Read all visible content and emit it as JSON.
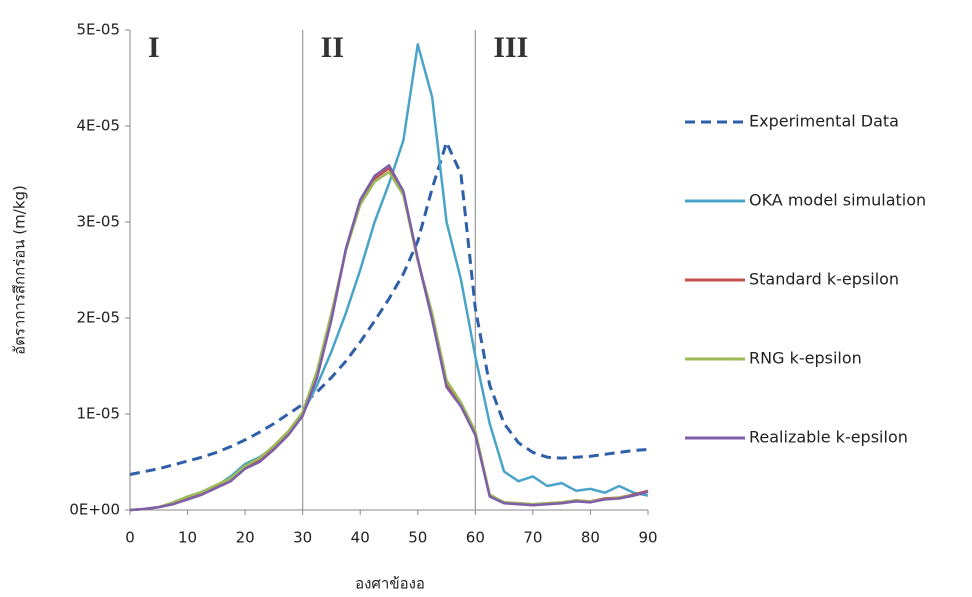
{
  "chart_data": {
    "type": "line",
    "x_label": "องศาข้องอ",
    "y_label": "อัตราการสึกกร่อน (m/kg)",
    "x": [
      0,
      2.5,
      5,
      7.5,
      10,
      12.5,
      15,
      17.5,
      20,
      22.5,
      25,
      27.5,
      30,
      32.5,
      35,
      37.5,
      40,
      42.5,
      45,
      47.5,
      50,
      52.5,
      55,
      57.5,
      60,
      62.5,
      65,
      67.5,
      70,
      72.5,
      75,
      77.5,
      80,
      82.5,
      85,
      87.5,
      90
    ],
    "series": [
      {
        "name": "Experimental Data",
        "color": "#2e5fa8",
        "dashed": true,
        "values": [
          3.7e-06,
          4e-06,
          4.3e-06,
          4.7e-06,
          5.1e-06,
          5.5e-06,
          6e-06,
          6.6e-06,
          7.3e-06,
          8.1e-06,
          9e-06,
          1e-05,
          1.1e-05,
          1.23e-05,
          1.38e-05,
          1.55e-05,
          1.75e-05,
          1.97e-05,
          2.2e-05,
          2.46e-05,
          2.8e-05,
          3.35e-05,
          3.83e-05,
          3.5e-05,
          2.1e-05,
          1.3e-05,
          9e-06,
          7e-06,
          6e-06,
          5.5e-06,
          5.4e-06,
          5.5e-06,
          5.6e-06,
          5.8e-06,
          6e-06,
          6.2e-06,
          6.3e-06
        ]
      },
      {
        "name": "OKA model simulation",
        "color": "#4aa3c8",
        "dashed": false,
        "values": [
          0,
          1e-07,
          3e-07,
          7e-07,
          1.2e-06,
          1.7e-06,
          2.5e-06,
          3.5e-06,
          4.8e-06,
          5.5e-06,
          6.5e-06,
          8e-06,
          1e-05,
          1.3e-05,
          1.65e-05,
          2.05e-05,
          2.5e-05,
          3e-05,
          3.4e-05,
          3.85e-05,
          4.85e-05,
          4.3e-05,
          3e-05,
          2.4e-05,
          1.6e-05,
          9e-06,
          4e-06,
          3e-06,
          3.5e-06,
          2.5e-06,
          2.8e-06,
          2e-06,
          2.2e-06,
          1.8e-06,
          2.5e-06,
          1.8e-06,
          1.5e-06
        ]
      },
      {
        "name": "Standard k-epsilon",
        "color": "#c0504d",
        "dashed": false,
        "values": [
          0,
          1e-07,
          3e-07,
          7e-07,
          1.3e-06,
          1.8e-06,
          2.5e-06,
          3.2e-06,
          4.5e-06,
          5.2e-06,
          6.5e-06,
          8e-06,
          1e-05,
          1.4e-05,
          2e-05,
          2.7e-05,
          3.2e-05,
          3.45e-05,
          3.56e-05,
          3.3e-05,
          2.6e-05,
          2e-05,
          1.3e-05,
          1.1e-05,
          8e-06,
          1.5e-06,
          8e-07,
          7e-07,
          6e-07,
          7e-07,
          8e-07,
          1e-06,
          9e-07,
          1.2e-06,
          1.3e-06,
          1.6e-06,
          2e-06
        ]
      },
      {
        "name": "RNG k-epsilon",
        "color": "#9bbb59",
        "dashed": false,
        "values": [
          0,
          1e-07,
          3e-07,
          8e-07,
          1.4e-06,
          1.9e-06,
          2.6e-06,
          3.3e-06,
          4.6e-06,
          5.4e-06,
          6.7e-06,
          8.2e-06,
          1.02e-05,
          1.45e-05,
          2.05e-05,
          2.7e-05,
          3.18e-05,
          3.42e-05,
          3.52e-05,
          3.28e-05,
          2.6e-05,
          2.05e-05,
          1.35e-05,
          1.12e-05,
          8.2e-06,
          1.6e-06,
          8e-07,
          7e-07,
          6e-07,
          7e-07,
          8e-07,
          1e-06,
          9e-07,
          1.1e-06,
          1.3e-06,
          1.5e-06,
          1.9e-06
        ]
      },
      {
        "name": "Realizable k-epsilon",
        "color": "#7f5ea8",
        "dashed": false,
        "values": [
          0,
          1e-07,
          3e-07,
          6e-07,
          1.1e-06,
          1.6e-06,
          2.3e-06,
          3e-06,
          4.3e-06,
          5e-06,
          6.3e-06,
          7.8e-06,
          9.8e-06,
          1.38e-05,
          1.98e-05,
          2.72e-05,
          3.23e-05,
          3.48e-05,
          3.59e-05,
          3.32e-05,
          2.62e-05,
          1.98e-05,
          1.28e-05,
          1.08e-05,
          7.8e-06,
          1.4e-06,
          7e-07,
          6e-07,
          5e-07,
          6e-07,
          7e-07,
          9e-07,
          8e-07,
          1.1e-06,
          1.2e-06,
          1.5e-06,
          1.9e-06
        ]
      }
    ],
    "xlim": [
      0,
      90
    ],
    "xticks": [
      0,
      10,
      20,
      30,
      40,
      50,
      60,
      70,
      80,
      90
    ],
    "ylim": [
      0,
      5e-05
    ],
    "yticks": [
      {
        "value": 0,
        "label": "0E+00"
      },
      {
        "value": 1e-05,
        "label": "1E-05"
      },
      {
        "value": 2e-05,
        "label": "2E-05"
      },
      {
        "value": 3e-05,
        "label": "3E-05"
      },
      {
        "value": 4e-05,
        "label": "4E-05"
      },
      {
        "value": 5e-05,
        "label": "5E-05"
      }
    ],
    "vlines": [
      30,
      60
    ],
    "region_labels": [
      "I",
      "II",
      "III"
    ],
    "legend": "right",
    "grid": false
  }
}
